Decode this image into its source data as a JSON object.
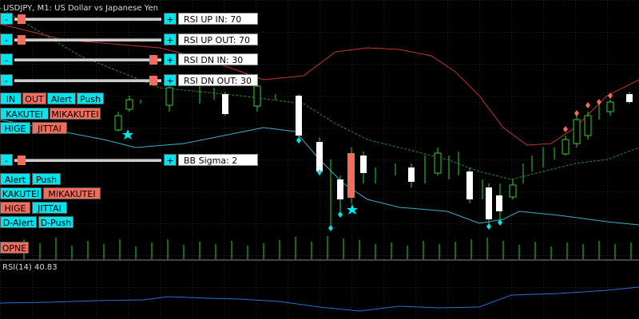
{
  "header": {
    "title": "USDJPY, M1:  US Dollar vs Japanese Yen"
  },
  "sliders": [
    {
      "minus": "-",
      "plus": "+",
      "label": "RSI UP IN: 70"
    },
    {
      "minus": "-",
      "plus": "+",
      "label": "RSI UP OUT: 70"
    },
    {
      "minus": "-",
      "plus": "+",
      "label": "RSI DN IN: 30"
    },
    {
      "minus": "-",
      "plus": "+",
      "label": "RSI DN OUT: 30"
    },
    {
      "minus": "-",
      "plus": "+",
      "label": "BB Sigma: 2"
    }
  ],
  "buttons_top": [
    "IN",
    "OUT",
    "Alert",
    "Push",
    "KAKUTEI",
    "MIKAKUTEI",
    "HIGE",
    "JITTAI"
  ],
  "buttons_bottom": [
    "Alert",
    "Push",
    "KAKUTEI",
    "MIKAKUTEI",
    "HIGE",
    "JITTAI",
    "D-Alert",
    "D-Push"
  ],
  "open_button": "OPNE",
  "subwindow": {
    "label": "RSI(14) 40.83"
  }
}
